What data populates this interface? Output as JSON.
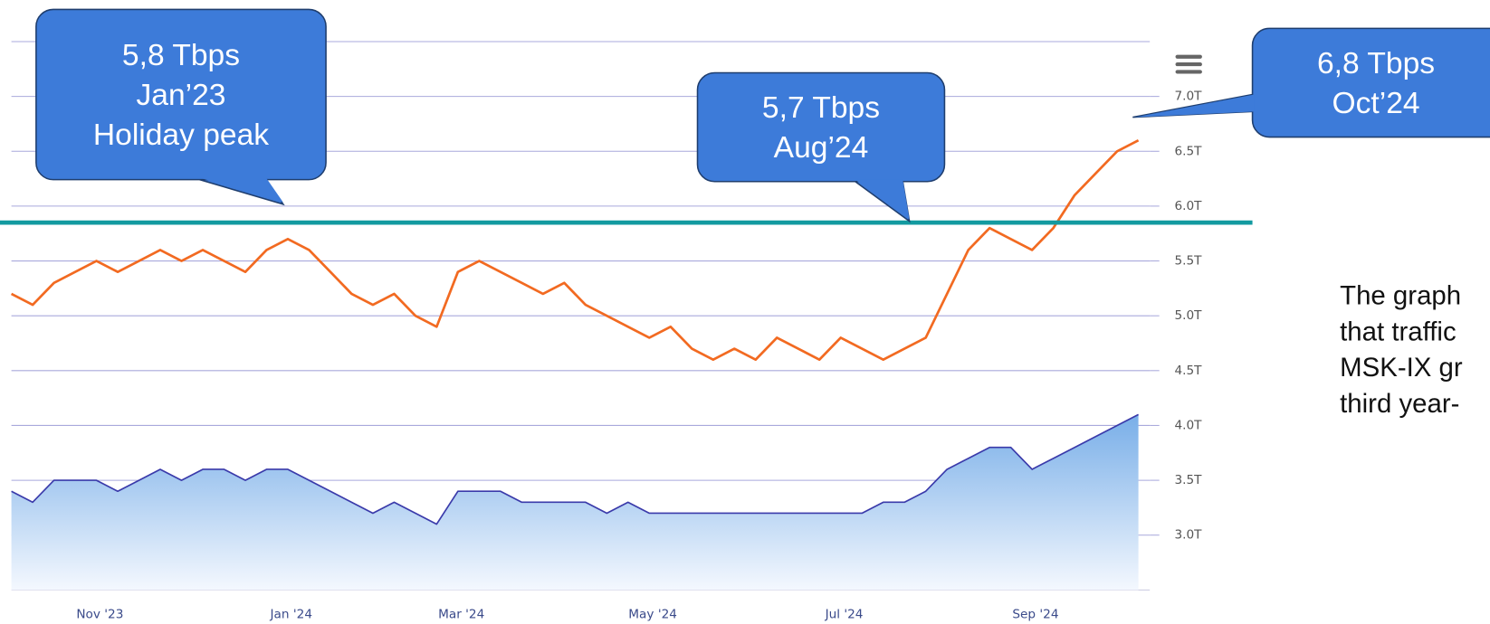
{
  "chart_data": {
    "type": "line",
    "categories": [
      null,
      null,
      null,
      "Nov '23",
      null,
      null,
      null,
      null,
      null,
      null,
      null,
      null,
      "Jan '24",
      null,
      null,
      null,
      null,
      null,
      null,
      null,
      "Mar '24",
      null,
      null,
      null,
      null,
      null,
      null,
      null,
      null,
      "May '24",
      null,
      null,
      null,
      null,
      null,
      null,
      null,
      null,
      "Jul '24",
      null,
      null,
      null,
      null,
      null,
      null,
      null,
      null,
      "Sep '24",
      null,
      null,
      null,
      null,
      null,
      null
    ],
    "series": [
      {
        "color": "#f26a21",
        "values": [
          5.2,
          5.1,
          5.3,
          5.4,
          5.5,
          5.4,
          5.5,
          5.6,
          5.5,
          5.6,
          5.5,
          5.4,
          5.6,
          5.7,
          5.6,
          5.4,
          5.2,
          5.1,
          5.2,
          5.0,
          4.9,
          5.4,
          5.5,
          5.4,
          5.3,
          5.2,
          5.3,
          5.1,
          5.0,
          4.9,
          4.8,
          4.9,
          4.7,
          4.6,
          4.7,
          4.6,
          4.8,
          4.7,
          4.6,
          4.8,
          4.7,
          4.6,
          4.7,
          4.8,
          5.2,
          5.6,
          5.8,
          5.7,
          5.6,
          5.8,
          6.1,
          6.3,
          6.5,
          6.6
        ]
      },
      {
        "color": "#3a3aaa",
        "area": true,
        "values": [
          3.4,
          3.3,
          3.5,
          3.5,
          3.5,
          3.4,
          3.5,
          3.6,
          3.5,
          3.6,
          3.6,
          3.5,
          3.6,
          3.6,
          3.5,
          3.4,
          3.3,
          3.2,
          3.3,
          3.2,
          3.1,
          3.4,
          3.4,
          3.4,
          3.3,
          3.3,
          3.3,
          3.3,
          3.2,
          3.3,
          3.2,
          3.2,
          3.2,
          3.2,
          3.2,
          3.2,
          3.2,
          3.2,
          3.2,
          3.2,
          3.2,
          3.3,
          3.3,
          3.4,
          3.6,
          3.7,
          3.8,
          3.8,
          3.6,
          3.7,
          3.8,
          3.9,
          4.0,
          4.1
        ]
      }
    ],
    "ylim": [
      2.5,
      7.5
    ],
    "yticks": [
      {
        "value": 3,
        "label": "3.0T"
      },
      {
        "value": 3.5,
        "label": "3.5T"
      },
      {
        "value": 4,
        "label": "4.0T"
      },
      {
        "value": 4.5,
        "label": "4.5T"
      },
      {
        "value": 5,
        "label": "5.0T"
      },
      {
        "value": 5.5,
        "label": "5.5T"
      },
      {
        "value": 6,
        "label": "6.0T"
      },
      {
        "value": 6.5,
        "label": "6.5T"
      },
      {
        "value": 7,
        "label": "7.0T"
      },
      7.5
    ],
    "grid": true,
    "reference_line": {
      "value": 5.85,
      "color": "#139aa0"
    },
    "annotations": [
      {
        "lines": [
          "5,8 Tbps",
          "Jan’23",
          "Holiday peak"
        ]
      },
      {
        "lines": [
          "5,7 Tbps",
          "Aug’24"
        ]
      },
      {
        "lines": [
          "6,8 Tbps",
          "Oct’24"
        ]
      }
    ],
    "side_text": [
      "The graph",
      "that traffic",
      "MSK-IX gr",
      "third year-"
    ]
  }
}
